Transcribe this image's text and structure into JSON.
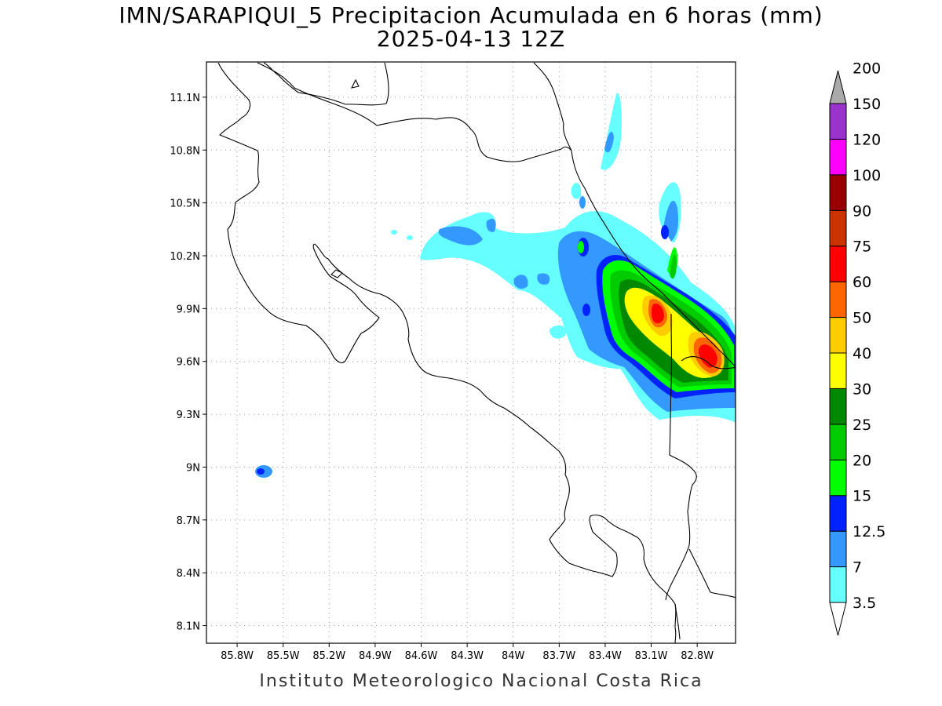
{
  "map": {
    "title_line1": "IMN/SARAPIQUI_5 Precipitacion Acumulada en 6 horas (mm)",
    "title_line2": "2025-04-13 12Z",
    "footer": "Instituto Meteorologico Nacional Costa Rica",
    "lon_range": [
      -86.0,
      -82.55
    ],
    "lat_range": [
      8.0,
      11.3
    ],
    "lon_ticks": [
      "85.8W",
      "85.5W",
      "85.2W",
      "84.9W",
      "84.6W",
      "84.3W",
      "84W",
      "83.7W",
      "83.4W",
      "83.1W",
      "82.8W"
    ],
    "lat_ticks": [
      "11.1N",
      "10.8N",
      "10.5N",
      "10.2N",
      "9.9N",
      "9.6N",
      "9.3N",
      "9N",
      "8.7N",
      "8.4N",
      "8.1N"
    ],
    "grid": "dotted"
  },
  "colorbar": {
    "levels": [
      "3.5",
      "7",
      "12.5",
      "15",
      "20",
      "25",
      "30",
      "40",
      "50",
      "60",
      "75",
      "90",
      "100",
      "120",
      "150",
      "200"
    ],
    "colors": [
      "#66ffff",
      "#3399ff",
      "#0022ff",
      "#00ff00",
      "#00cc00",
      "#008800",
      "#ffff00",
      "#ffcc00",
      "#ff6600",
      "#ff0000",
      "#cc3300",
      "#990000",
      "#ff00ff",
      "#9933cc",
      "#f4f4f4",
      "#aaaaaa"
    ],
    "placement": "right"
  }
}
